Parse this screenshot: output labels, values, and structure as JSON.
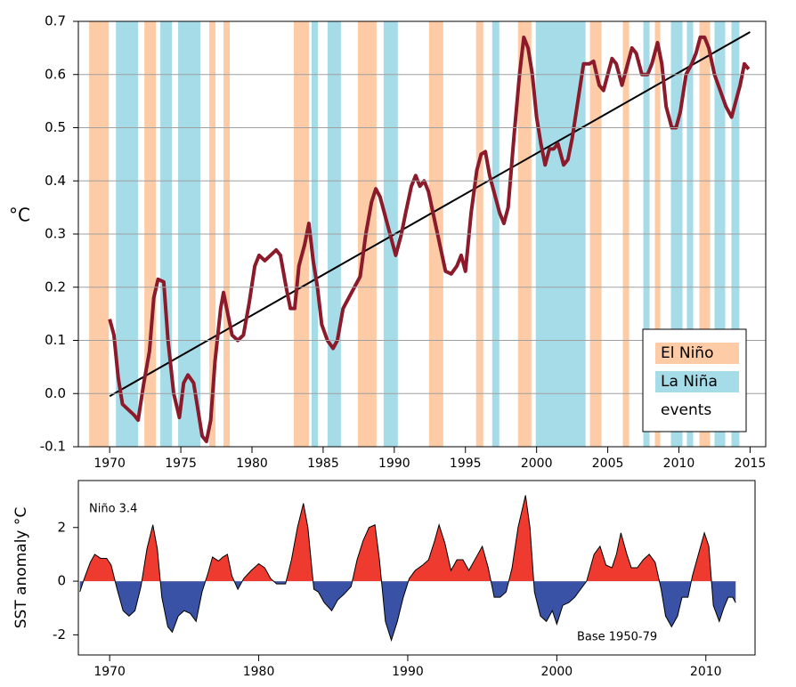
{
  "chart_data": [
    {
      "type": "line",
      "y_label": "°C",
      "color": "#8b1a2b",
      "xlim": [
        1967.8,
        2016.1
      ],
      "ylim": [
        -0.1,
        0.7
      ],
      "xticks": [
        1970,
        1975,
        1980,
        1985,
        1990,
        1995,
        2000,
        2005,
        2010,
        2015
      ],
      "yticks": [
        -0.1,
        {
          "value": 0,
          "label": "0.0"
        },
        0.1,
        0.2,
        0.3,
        0.4,
        0.5,
        0.6,
        0.7
      ],
      "grid": true,
      "legend": "lower right",
      "legend_note": "events",
      "events": [
        {
          "name": "El Niño",
          "color": "#fdcba5",
          "periods": [
            [
              1968.56,
              1969.94
            ],
            [
              1972.44,
              1973.25
            ],
            [
              1977.0,
              1977.44
            ],
            [
              1978.0,
              1978.44
            ],
            [
              1982.94,
              1984.0
            ],
            [
              1987.44,
              1988.75
            ],
            [
              1992.44,
              1993.44
            ],
            [
              1995.75,
              1996.25
            ],
            [
              1998.69,
              1999.63
            ],
            [
              2003.75,
              2004.56
            ],
            [
              2006.06,
              2006.5
            ],
            [
              2008.31,
              2008.69
            ],
            [
              2011.44,
              2012.19
            ]
          ]
        },
        {
          "name": "La Niña",
          "color": "#a6dce8",
          "periods": [
            [
              1970.44,
              1972.0
            ],
            [
              1973.56,
              1974.38
            ],
            [
              1974.81,
              1976.38
            ],
            [
              1984.19,
              1984.63
            ],
            [
              1985.31,
              1986.25
            ],
            [
              1989.25,
              1990.25
            ],
            [
              1996.88,
              1997.38
            ],
            [
              1999.94,
              2003.44
            ],
            [
              2007.5,
              2007.94
            ],
            [
              2009.44,
              2010.25
            ],
            [
              2010.56,
              2011.0
            ],
            [
              2012.5,
              2013.25
            ],
            [
              2013.69,
              2014.25
            ]
          ]
        }
      ],
      "x": [
        1970.0,
        1970.3,
        1970.6,
        1970.9,
        1971.3,
        1971.7,
        1972.0,
        1972.4,
        1972.8,
        1973.1,
        1973.4,
        1973.8,
        1974.1,
        1974.5,
        1974.9,
        1975.2,
        1975.5,
        1975.9,
        1976.2,
        1976.5,
        1976.8,
        1977.1,
        1977.4,
        1977.8,
        1978.0,
        1978.3,
        1978.6,
        1979.0,
        1979.4,
        1979.8,
        1980.2,
        1980.5,
        1980.9,
        1981.3,
        1981.7,
        1982.0,
        1982.4,
        1982.7,
        1983.0,
        1983.3,
        1983.7,
        1984.0,
        1984.3,
        1984.6,
        1984.9,
        1985.3,
        1985.7,
        1986.0,
        1986.4,
        1986.8,
        1987.2,
        1987.6,
        1988.0,
        1988.4,
        1988.7,
        1989.0,
        1989.4,
        1989.8,
        1990.1,
        1990.5,
        1990.8,
        1991.2,
        1991.5,
        1991.8,
        1992.1,
        1992.4,
        1992.8,
        1993.2,
        1993.6,
        1994.0,
        1994.4,
        1994.7,
        1995.0,
        1995.4,
        1995.8,
        1996.1,
        1996.4,
        1996.7,
        1997.0,
        1997.4,
        1997.7,
        1998.0,
        1998.4,
        1998.8,
        1999.1,
        1999.4,
        1999.7,
        2000.0,
        2000.3,
        2000.6,
        2000.9,
        2001.2,
        2001.5,
        2001.9,
        2002.2,
        2002.5,
        2002.9,
        2003.3,
        2003.7,
        2004.0,
        2004.4,
        2004.7,
        2005.0,
        2005.3,
        2005.6,
        2006.0,
        2006.4,
        2006.7,
        2007.0,
        2007.4,
        2007.8,
        2008.1,
        2008.5,
        2008.8,
        2009.1,
        2009.5,
        2009.8,
        2010.1,
        2010.5,
        2010.9,
        2011.2,
        2011.5,
        2011.8,
        2012.1,
        2012.5,
        2012.9,
        2013.3,
        2013.7,
        2014.0,
        2014.3,
        2014.6,
        2014.9
      ],
      "values": [
        0.14,
        0.11,
        0.03,
        -0.02,
        -0.03,
        -0.04,
        -0.05,
        0.02,
        0.08,
        0.18,
        0.215,
        0.21,
        0.1,
        0.0,
        -0.045,
        0.02,
        0.035,
        0.02,
        -0.03,
        -0.08,
        -0.09,
        -0.05,
        0.06,
        0.16,
        0.19,
        0.15,
        0.11,
        0.1,
        0.11,
        0.17,
        0.24,
        0.26,
        0.25,
        0.26,
        0.27,
        0.26,
        0.2,
        0.16,
        0.16,
        0.24,
        0.28,
        0.32,
        0.25,
        0.2,
        0.13,
        0.1,
        0.085,
        0.1,
        0.16,
        0.18,
        0.2,
        0.22,
        0.3,
        0.36,
        0.385,
        0.37,
        0.33,
        0.29,
        0.26,
        0.3,
        0.34,
        0.39,
        0.41,
        0.39,
        0.4,
        0.38,
        0.33,
        0.28,
        0.23,
        0.225,
        0.24,
        0.26,
        0.23,
        0.34,
        0.42,
        0.45,
        0.455,
        0.41,
        0.38,
        0.34,
        0.32,
        0.35,
        0.48,
        0.6,
        0.67,
        0.65,
        0.6,
        0.52,
        0.47,
        0.43,
        0.46,
        0.46,
        0.47,
        0.43,
        0.44,
        0.48,
        0.55,
        0.62,
        0.62,
        0.625,
        0.58,
        0.57,
        0.6,
        0.63,
        0.62,
        0.58,
        0.62,
        0.65,
        0.64,
        0.6,
        0.6,
        0.62,
        0.66,
        0.62,
        0.54,
        0.5,
        0.5,
        0.53,
        0.6,
        0.62,
        0.64,
        0.67,
        0.67,
        0.65,
        0.6,
        0.57,
        0.54,
        0.52,
        0.55,
        0.58,
        0.62,
        0.61
      ],
      "trend": {
        "color": "#000000",
        "x": [
          1970,
          2015
        ],
        "values": [
          -0.005,
          0.68
        ]
      }
    },
    {
      "type": "area",
      "y_label": "SST anomaly °C",
      "annotations": [
        "Niño 3.4",
        "Base 1950-79"
      ],
      "positive_color": "#ee3a2f",
      "negative_color": "#3a52a5",
      "xlim": [
        1967.9,
        2013.3
      ],
      "ylim": [
        -2.75,
        3.75
      ],
      "xticks": [
        1970,
        1980,
        1990,
        2000,
        2010
      ],
      "yticks": [
        -2,
        0,
        2
      ],
      "x": [
        1968.0,
        1968.3,
        1968.7,
        1969.0,
        1969.4,
        1969.8,
        1970.1,
        1970.5,
        1970.9,
        1971.3,
        1971.7,
        1972.1,
        1972.5,
        1972.9,
        1973.2,
        1973.5,
        1973.9,
        1974.2,
        1974.6,
        1975.0,
        1975.4,
        1975.8,
        1976.2,
        1976.6,
        1976.9,
        1977.3,
        1977.6,
        1977.9,
        1978.2,
        1978.6,
        1979.0,
        1979.5,
        1980.0,
        1980.4,
        1980.8,
        1981.2,
        1981.8,
        1982.2,
        1982.6,
        1983.0,
        1983.3,
        1983.7,
        1984.0,
        1984.4,
        1984.9,
        1985.3,
        1985.7,
        1986.2,
        1986.6,
        1987.0,
        1987.4,
        1987.8,
        1988.1,
        1988.5,
        1988.9,
        1989.3,
        1989.7,
        1990.1,
        1990.5,
        1991.0,
        1991.4,
        1991.8,
        1992.1,
        1992.5,
        1992.9,
        1993.3,
        1993.7,
        1994.1,
        1994.6,
        1995.0,
        1995.4,
        1995.8,
        1996.2,
        1996.6,
        1997.0,
        1997.4,
        1997.9,
        1998.2,
        1998.5,
        1998.9,
        1999.3,
        1999.7,
        2000.0,
        2000.4,
        2000.8,
        2001.2,
        2001.6,
        2002.0,
        2002.5,
        2002.9,
        2003.3,
        2003.7,
        2004.0,
        2004.3,
        2004.7,
        2005.0,
        2005.4,
        2005.8,
        2006.2,
        2006.6,
        2007.0,
        2007.3,
        2007.7,
        2008.1,
        2008.4,
        2008.8,
        2009.1,
        2009.5,
        2009.9,
        2010.2,
        2010.5,
        2010.9,
        2011.2,
        2011.5,
        2011.8,
        2012.0
      ],
      "values": [
        -0.4,
        0.1,
        0.7,
        1.0,
        0.85,
        0.85,
        0.6,
        -0.3,
        -1.1,
        -1.3,
        -1.1,
        -0.2,
        1.2,
        2.1,
        1.2,
        -0.6,
        -1.7,
        -1.9,
        -1.3,
        -1.1,
        -1.2,
        -1.5,
        -0.4,
        0.3,
        0.9,
        0.75,
        0.9,
        1.0,
        0.2,
        -0.3,
        0.1,
        0.4,
        0.65,
        0.5,
        0.1,
        -0.1,
        -0.1,
        0.8,
        2.0,
        2.9,
        2.0,
        -0.3,
        -0.4,
        -0.8,
        -1.1,
        -0.7,
        -0.5,
        -0.2,
        0.8,
        1.5,
        2.0,
        2.1,
        0.8,
        -1.5,
        -2.2,
        -1.5,
        -0.6,
        0.1,
        0.4,
        0.6,
        0.8,
        1.5,
        2.1,
        1.4,
        0.4,
        0.8,
        0.8,
        0.4,
        0.9,
        1.3,
        0.5,
        -0.6,
        -0.6,
        -0.4,
        0.5,
        2.0,
        3.2,
        2.0,
        -0.4,
        -1.3,
        -1.5,
        -1.1,
        -1.6,
        -0.9,
        -0.8,
        -0.6,
        -0.3,
        0.0,
        1.0,
        1.3,
        0.6,
        0.5,
        1.0,
        1.8,
        1.0,
        0.5,
        0.5,
        0.8,
        1.0,
        0.7,
        -0.3,
        -1.3,
        -1.7,
        -1.3,
        -0.6,
        -0.6,
        0.2,
        1.0,
        1.8,
        1.3,
        -0.9,
        -1.5,
        -1.0,
        -0.6,
        -0.6,
        -0.8
      ]
    }
  ]
}
